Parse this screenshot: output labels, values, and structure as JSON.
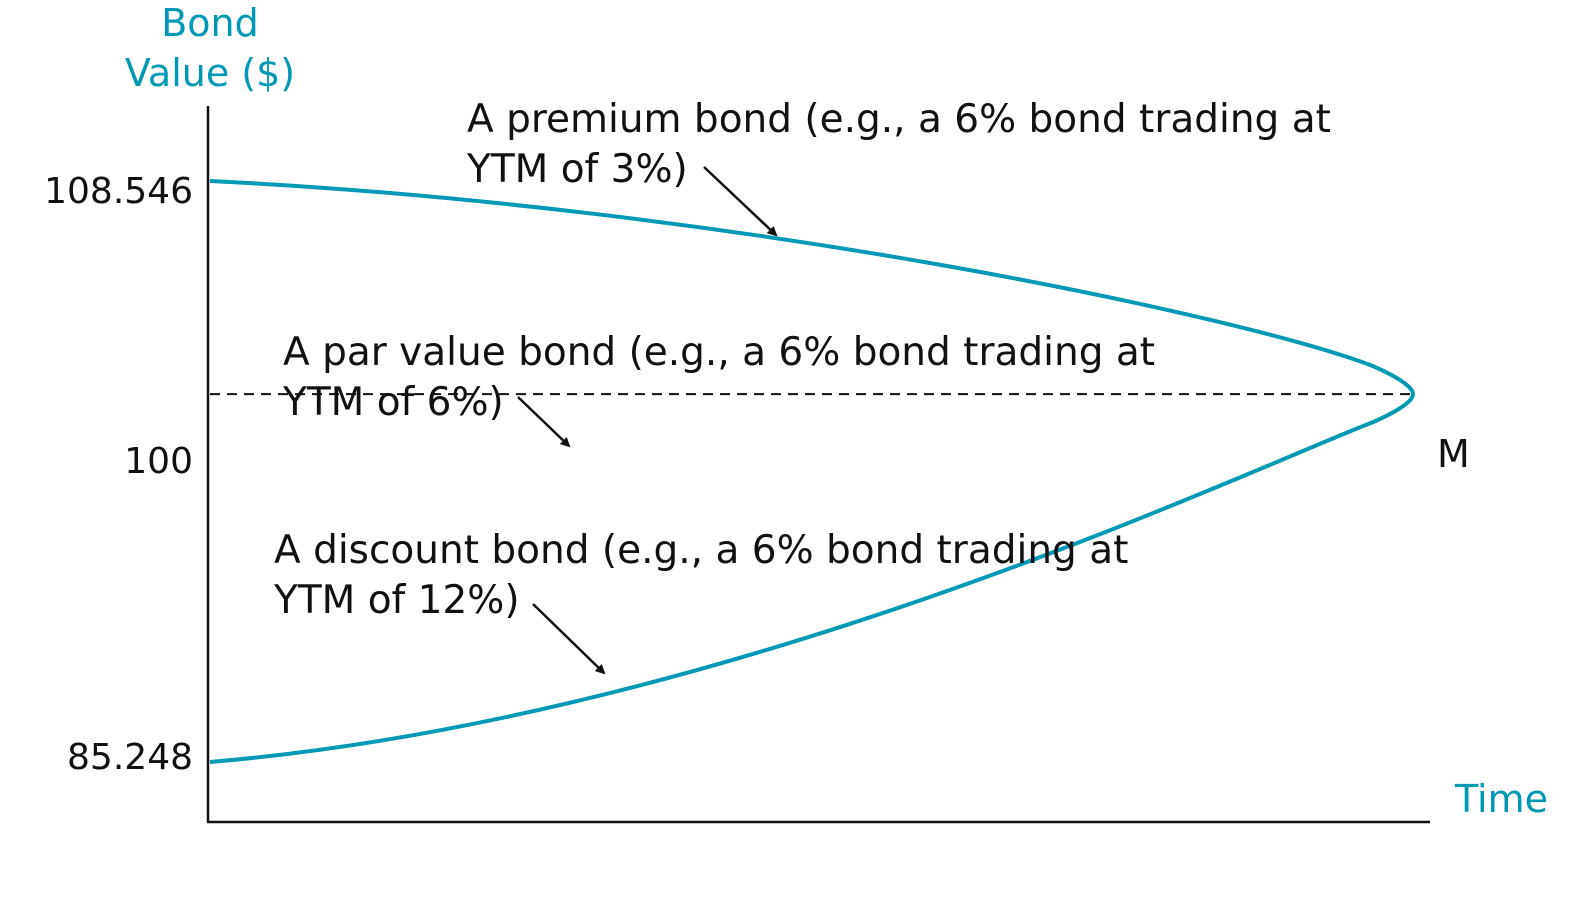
{
  "chart_data": {
    "type": "line",
    "title": "",
    "ylabel_lines": [
      "Bond",
      "Value ($)"
    ],
    "xlabel": "Time",
    "y_ticks": [
      {
        "value": 108.546,
        "label": "108.546"
      },
      {
        "value": 100,
        "label": "100"
      },
      {
        "value": 85.248,
        "label": "85.248"
      }
    ],
    "maturity_label": "M",
    "grid": false,
    "series": [
      {
        "key": "premium",
        "start_value": 108.546,
        "end_value": 100,
        "style": "solid",
        "annotation_lines": [
          "A premium bond (e.g., a 6% bond trading at",
          "YTM of 3%)"
        ]
      },
      {
        "key": "par",
        "start_value": 100,
        "end_value": 100,
        "style": "dashed",
        "annotation_lines": [
          "A par value bond (e.g., a 6% bond trading at",
          "YTM of 6%)"
        ]
      },
      {
        "key": "discount",
        "start_value": 85.248,
        "end_value": 100,
        "style": "solid",
        "annotation_lines": [
          "A discount bond (e.g., a 6% bond trading at",
          "YTM of 12%)"
        ]
      }
    ]
  },
  "colors": {
    "accent": "#0099B5",
    "text": "#111111",
    "axis": "#111111"
  }
}
